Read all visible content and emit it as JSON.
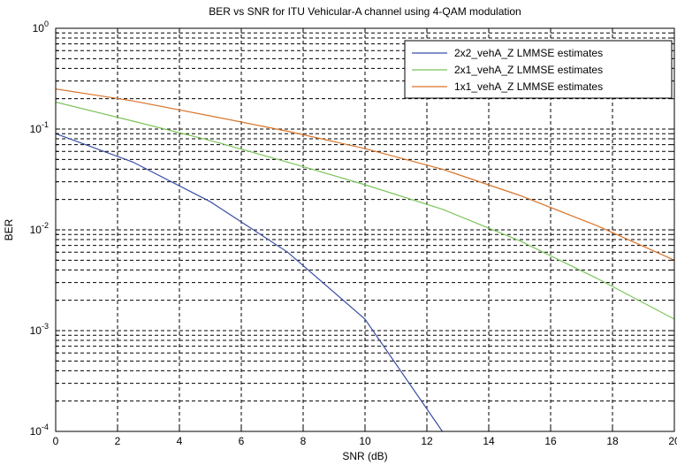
{
  "chart_data": {
    "type": "line",
    "title": "BER vs SNR for ITU Vehicular-A channel using 4-QAM modulation",
    "xlabel": "SNR (dB)",
    "ylabel": "BER",
    "x_scale": "linear",
    "y_scale": "log",
    "xlim": [
      0,
      20
    ],
    "ylim": [
      0.0001,
      1
    ],
    "grid": true,
    "grid_style": "dashed, major and minor",
    "legend_position": "top-right",
    "x_ticks": [
      0,
      2,
      4,
      6,
      8,
      10,
      12,
      14,
      16,
      18,
      20
    ],
    "y_ticks": [
      {
        "value": 1,
        "base": "10",
        "exp": "0"
      },
      {
        "value": 0.1,
        "base": "10",
        "exp": "-1"
      },
      {
        "value": 0.01,
        "base": "10",
        "exp": "-2"
      },
      {
        "value": 0.001,
        "base": "10",
        "exp": "-3"
      },
      {
        "value": 0.0001,
        "base": "10",
        "exp": "-4"
      }
    ],
    "series": [
      {
        "name": "2x2_vehA_Z LMMSE estimates",
        "color": "#3a4fa3",
        "x": [
          0,
          2.5,
          5,
          7.5,
          10,
          12.5
        ],
        "y": [
          0.09,
          0.047,
          0.019,
          0.006,
          0.0013,
          0.0001
        ]
      },
      {
        "name": "2x1_vehA_Z LMMSE estimates",
        "color": "#7cc45a",
        "x": [
          0,
          2.5,
          5,
          7.5,
          10,
          12.5,
          15,
          17.5,
          20
        ],
        "y": [
          0.185,
          0.12,
          0.077,
          0.047,
          0.028,
          0.016,
          0.0078,
          0.0033,
          0.0013
        ]
      },
      {
        "name": "1x1_vehA_Z LMMSE estimates",
        "color": "#d9742a",
        "x": [
          0,
          2.5,
          5,
          7.5,
          10,
          12.5,
          15,
          17.5,
          20
        ],
        "y": [
          0.25,
          0.19,
          0.135,
          0.095,
          0.064,
          0.04,
          0.022,
          0.011,
          0.005
        ]
      }
    ]
  }
}
